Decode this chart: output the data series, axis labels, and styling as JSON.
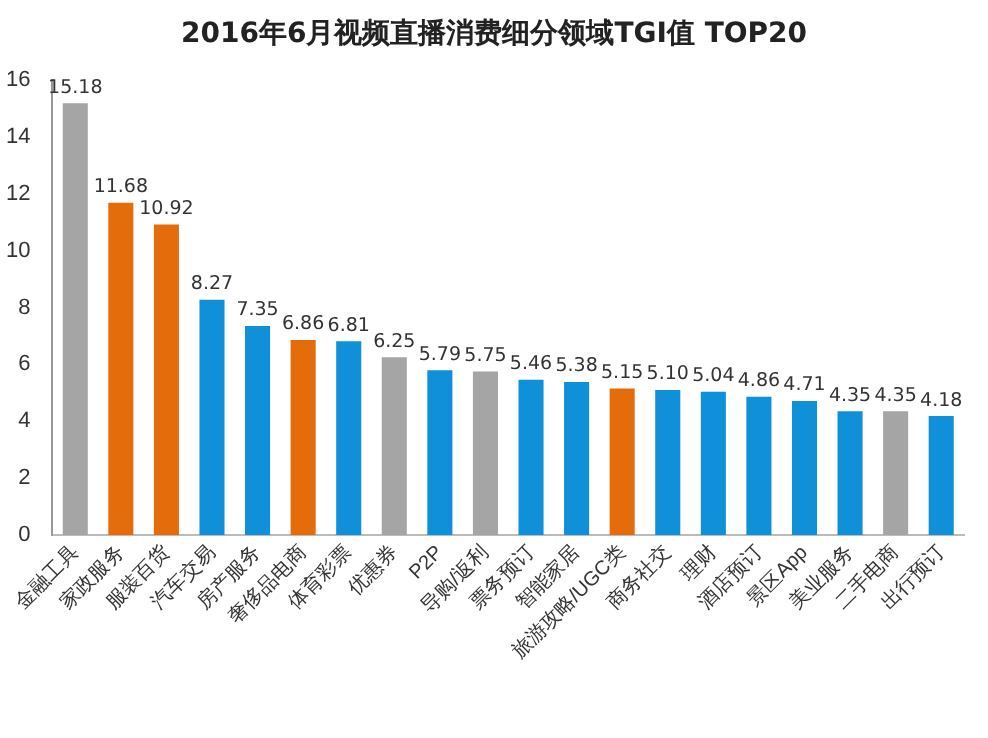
{
  "chart_data": {
    "type": "bar",
    "title": "2016年6月视频直播消费细分领域TGI值  TOP20",
    "categories": [
      "金融工具",
      "家政服务",
      "服装百货",
      "汽车交易",
      "房产服务",
      "奢侈品电商",
      "体育彩票",
      "优惠券",
      "P2P",
      "导购/返利",
      "票务预订",
      "智能家居",
      "旅游攻略/UGC类",
      "商务社交",
      "理财",
      "酒店预订",
      "景区App",
      "美业服务",
      "二手电商",
      "出行预订"
    ],
    "values": [
      15.18,
      11.68,
      10.92,
      8.27,
      7.35,
      6.86,
      6.81,
      6.25,
      5.79,
      5.75,
      5.46,
      5.38,
      5.15,
      5.1,
      5.04,
      4.86,
      4.71,
      4.35,
      4.35,
      4.18
    ],
    "colors": [
      "#a5a5a5",
      "#e46c0a",
      "#e46c0a",
      "#0f90d8",
      "#0f90d8",
      "#e46c0a",
      "#0f90d8",
      "#a5a5a5",
      "#0f90d8",
      "#a5a5a5",
      "#0f90d8",
      "#0f90d8",
      "#e46c0a",
      "#0f90d8",
      "#0f90d8",
      "#0f90d8",
      "#0f90d8",
      "#0f90d8",
      "#a5a5a5",
      "#0f90d8"
    ],
    "value_labels": [
      "15.18",
      "11.68",
      "10.92",
      "8.27",
      "7.35",
      "6.86",
      "6.81",
      "6.25",
      "5.79",
      "5.75",
      "5.46",
      "5.38",
      "5.15",
      "5.10",
      "5.04",
      "4.86",
      "4.71",
      "4.35",
      "4.35",
      "4.18"
    ],
    "ylim": [
      0,
      16
    ],
    "yticks": [
      0,
      2,
      4,
      6,
      8,
      10,
      12,
      14,
      16
    ],
    "grid": false,
    "legend": false
  }
}
